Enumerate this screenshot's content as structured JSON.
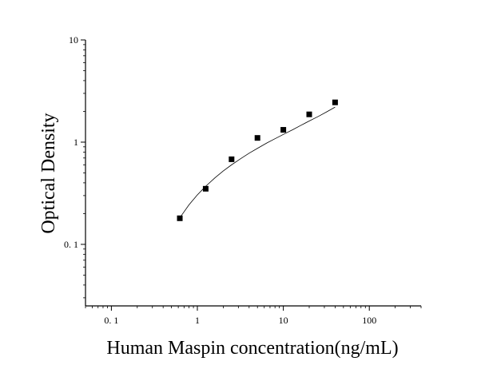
{
  "chart_data": {
    "type": "scatter",
    "title": "",
    "xlabel": "Human Maspin concentration(ng/mL)",
    "ylabel": "Optical Density",
    "x_scale": "log",
    "y_scale": "log",
    "xlim": [
      0.05,
      400
    ],
    "ylim": [
      0.025,
      10
    ],
    "x_ticks": [
      {
        "value": 0.1,
        "label": "0. 1"
      },
      {
        "value": 1,
        "label": "1"
      },
      {
        "value": 10,
        "label": "10"
      },
      {
        "value": 100,
        "label": "100"
      }
    ],
    "y_ticks": [
      {
        "value": 0.1,
        "label": "0. 1"
      },
      {
        "value": 1,
        "label": "1"
      },
      {
        "value": 10,
        "label": "10"
      }
    ],
    "grid": false,
    "marker": "square",
    "series": [
      {
        "x": [
          0.625,
          1.25,
          2.5,
          5,
          10,
          20,
          40
        ],
        "y": [
          0.18,
          0.35,
          0.68,
          1.1,
          1.32,
          1.87,
          2.45
        ]
      }
    ],
    "fit_curve": {
      "x": [
        0.625,
        0.8,
        1.0,
        1.25,
        1.6,
        2.0,
        2.5,
        3.2,
        4.0,
        5.0,
        6.4,
        8.0,
        10,
        13,
        16,
        20,
        26,
        32,
        40
      ],
      "y": [
        0.182,
        0.244,
        0.305,
        0.37,
        0.447,
        0.522,
        0.6,
        0.69,
        0.78,
        0.87,
        0.98,
        1.08,
        1.19,
        1.33,
        1.46,
        1.61,
        1.8,
        1.98,
        2.2
      ]
    }
  }
}
